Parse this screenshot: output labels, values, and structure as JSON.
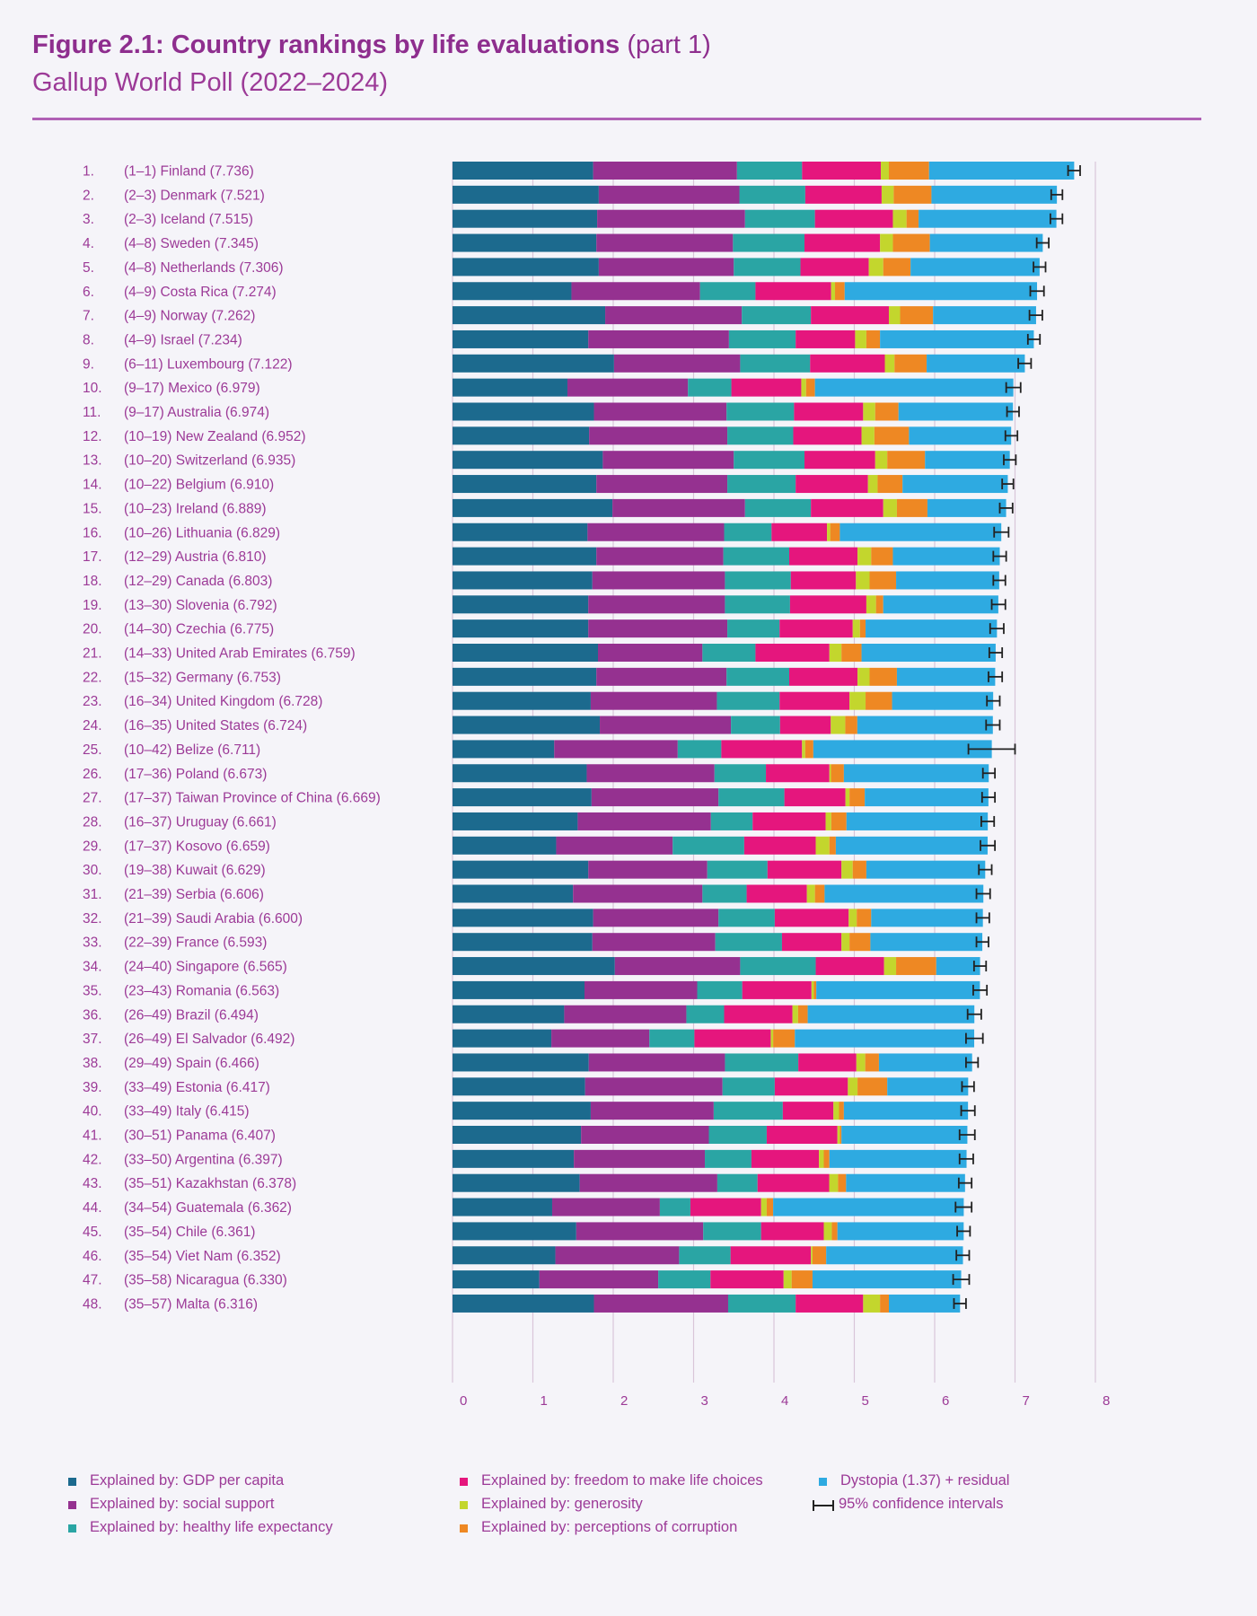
{
  "title": {
    "main": "Figure 2.1: Country rankings by life evaluations",
    "part": "(part 1)",
    "subtitle": "Gallup World Poll (2022–2024)"
  },
  "colors": {
    "gdp": "#1c6a8e",
    "social": "#953190",
    "health": "#2aa5a4",
    "freedom": "#e5167d",
    "generosity": "#c3d62d",
    "corruption": "#ee8823",
    "dystopia": "#2eaae1",
    "text": "#9c3a97",
    "grid": "#d9c5d9"
  },
  "legend": [
    {
      "key": "gdp",
      "label": "Explained by: GDP per capita"
    },
    {
      "key": "social",
      "label": "Explained by: social support"
    },
    {
      "key": "health",
      "label": "Explained by: healthy life expectancy"
    },
    {
      "key": "freedom",
      "label": "Explained by: freedom to make life choices"
    },
    {
      "key": "generosity",
      "label": "Explained by: generosity"
    },
    {
      "key": "corruption",
      "label": "Explained by: perceptions of corruption"
    },
    {
      "key": "dystopia",
      "label": "Dystopia (1.37) + residual"
    },
    {
      "key": "ci",
      "label": "95% confidence intervals"
    }
  ],
  "chart_data": {
    "type": "bar",
    "orientation": "horizontal",
    "stacked": true,
    "xlim": [
      0,
      8
    ],
    "xticks": [
      "0",
      "1",
      "2",
      "3",
      "4",
      "5",
      "6",
      "7",
      "8"
    ],
    "grid": true,
    "legend_position": "bottom",
    "series_keys": [
      "gdp",
      "social",
      "health",
      "freedom",
      "generosity",
      "corruption",
      "dystopia"
    ],
    "rows": [
      {
        "rank": "1.",
        "range": "(1–1)",
        "country": "Finland",
        "score": "7.736",
        "value": 7.736,
        "ci": [
          7.66,
          7.81
        ],
        "parts": [
          1.75,
          1.79,
          0.81,
          0.98,
          0.1,
          0.5,
          1.806
        ]
      },
      {
        "rank": "2.",
        "range": "(2–3)",
        "country": "Denmark",
        "score": "7.521",
        "value": 7.521,
        "ci": [
          7.45,
          7.59
        ],
        "parts": [
          1.82,
          1.75,
          0.82,
          0.95,
          0.15,
          0.47,
          1.561
        ]
      },
      {
        "rank": "3.",
        "range": "(2–3)",
        "country": "Iceland",
        "score": "7.515",
        "value": 7.515,
        "ci": [
          7.44,
          7.59
        ],
        "parts": [
          1.8,
          1.84,
          0.87,
          0.97,
          0.17,
          0.15,
          1.715
        ]
      },
      {
        "rank": "4.",
        "range": "(4–8)",
        "country": "Sweden",
        "score": "7.345",
        "value": 7.345,
        "ci": [
          7.27,
          7.42
        ],
        "parts": [
          1.79,
          1.7,
          0.89,
          0.94,
          0.16,
          0.46,
          1.405
        ]
      },
      {
        "rank": "5.",
        "range": "(4–8)",
        "country": "Netherlands",
        "score": "7.306",
        "value": 7.306,
        "ci": [
          7.23,
          7.38
        ],
        "parts": [
          1.82,
          1.68,
          0.83,
          0.85,
          0.18,
          0.34,
          1.606
        ]
      },
      {
        "rank": "6.",
        "range": "(4–9)",
        "country": "Costa Rica",
        "score": "7.274",
        "value": 7.274,
        "ci": [
          7.19,
          7.36
        ],
        "parts": [
          1.48,
          1.6,
          0.69,
          0.94,
          0.05,
          0.12,
          2.394
        ]
      },
      {
        "rank": "7.",
        "range": "(4–9)",
        "country": "Norway",
        "score": "7.262",
        "value": 7.262,
        "ci": [
          7.18,
          7.34
        ],
        "parts": [
          1.9,
          1.7,
          0.86,
          0.97,
          0.14,
          0.41,
          1.282
        ]
      },
      {
        "rank": "8.",
        "range": "(4–9)",
        "country": "Israel",
        "score": "7.234",
        "value": 7.234,
        "ci": [
          7.16,
          7.31
        ],
        "parts": [
          1.69,
          1.75,
          0.83,
          0.74,
          0.14,
          0.17,
          1.914
        ]
      },
      {
        "rank": "9.",
        "range": "(6–11)",
        "country": "Luxembourg",
        "score": "7.122",
        "value": 7.122,
        "ci": [
          7.04,
          7.2
        ],
        "parts": [
          2.01,
          1.57,
          0.87,
          0.93,
          0.12,
          0.4,
          1.222
        ]
      },
      {
        "rank": "10.",
        "range": "(9–17)",
        "country": "Mexico",
        "score": "6.979",
        "value": 6.979,
        "ci": [
          6.89,
          7.07
        ],
        "parts": [
          1.43,
          1.5,
          0.54,
          0.87,
          0.06,
          0.11,
          2.469
        ]
      },
      {
        "rank": "11.",
        "range": "(9–17)",
        "country": "Australia",
        "score": "6.974",
        "value": 6.974,
        "ci": [
          6.9,
          7.05
        ],
        "parts": [
          1.76,
          1.65,
          0.84,
          0.86,
          0.15,
          0.29,
          1.424
        ]
      },
      {
        "rank": "12.",
        "range": "(10–19)",
        "country": "New Zealand",
        "score": "6.952",
        "value": 6.952,
        "ci": [
          6.88,
          7.03
        ],
        "parts": [
          1.7,
          1.72,
          0.82,
          0.85,
          0.16,
          0.43,
          1.272
        ]
      },
      {
        "rank": "13.",
        "range": "(10–20)",
        "country": "Switzerland",
        "score": "6.935",
        "value": 6.935,
        "ci": [
          6.86,
          7.01
        ],
        "parts": [
          1.87,
          1.63,
          0.88,
          0.88,
          0.15,
          0.47,
          1.055
        ]
      },
      {
        "rank": "14.",
        "range": "(10–22)",
        "country": "Belgium",
        "score": "6.910",
        "value": 6.91,
        "ci": [
          6.84,
          6.98
        ],
        "parts": [
          1.79,
          1.63,
          0.85,
          0.9,
          0.12,
          0.31,
          1.31
        ]
      },
      {
        "rank": "15.",
        "range": "(10–23)",
        "country": "Ireland",
        "score": "6.889",
        "value": 6.889,
        "ci": [
          6.81,
          6.97
        ],
        "parts": [
          1.99,
          1.65,
          0.82,
          0.9,
          0.17,
          0.38,
          0.979
        ]
      },
      {
        "rank": "16.",
        "range": "(10–26)",
        "country": "Lithuania",
        "score": "6.829",
        "value": 6.829,
        "ci": [
          6.74,
          6.92
        ],
        "parts": [
          1.68,
          1.7,
          0.59,
          0.69,
          0.04,
          0.12,
          2.009
        ]
      },
      {
        "rank": "17.",
        "range": "(12–29)",
        "country": "Austria",
        "score": "6.810",
        "value": 6.81,
        "ci": [
          6.73,
          6.89
        ],
        "parts": [
          1.79,
          1.58,
          0.82,
          0.85,
          0.17,
          0.27,
          1.33
        ]
      },
      {
        "rank": "18.",
        "range": "(12–29)",
        "country": "Canada",
        "score": "6.803",
        "value": 6.803,
        "ci": [
          6.73,
          6.88
        ],
        "parts": [
          1.74,
          1.65,
          0.82,
          0.81,
          0.17,
          0.33,
          1.283
        ]
      },
      {
        "rank": "19.",
        "range": "(13–30)",
        "country": "Slovenia",
        "score": "6.792",
        "value": 6.792,
        "ci": [
          6.71,
          6.88
        ],
        "parts": [
          1.69,
          1.7,
          0.81,
          0.95,
          0.12,
          0.09,
          1.432
        ]
      },
      {
        "rank": "20.",
        "range": "(14–30)",
        "country": "Czechia",
        "score": "6.775",
        "value": 6.775,
        "ci": [
          6.69,
          6.86
        ],
        "parts": [
          1.69,
          1.73,
          0.65,
          0.91,
          0.09,
          0.07,
          1.635
        ]
      },
      {
        "rank": "21.",
        "range": "(14–33)",
        "country": "United Arab Emirates",
        "score": "6.759",
        "value": 6.759,
        "ci": [
          6.68,
          6.84
        ],
        "parts": [
          1.81,
          1.3,
          0.66,
          0.92,
          0.15,
          0.25,
          1.669
        ]
      },
      {
        "rank": "22.",
        "range": "(15–32)",
        "country": "Germany",
        "score": "6.753",
        "value": 6.753,
        "ci": [
          6.67,
          6.84
        ],
        "parts": [
          1.79,
          1.62,
          0.78,
          0.85,
          0.15,
          0.34,
          1.223
        ]
      },
      {
        "rank": "23.",
        "range": "(16–34)",
        "country": "United Kingdom",
        "score": "6.728",
        "value": 6.728,
        "ci": [
          6.65,
          6.81
        ],
        "parts": [
          1.72,
          1.57,
          0.78,
          0.87,
          0.2,
          0.33,
          1.258
        ]
      },
      {
        "rank": "24.",
        "range": "(16–35)",
        "country": "United States",
        "score": "6.724",
        "value": 6.724,
        "ci": [
          6.64,
          6.81
        ],
        "parts": [
          1.83,
          1.63,
          0.61,
          0.63,
          0.18,
          0.15,
          1.684
        ]
      },
      {
        "rank": "25.",
        "range": "(10–42)",
        "country": "Belize",
        "score": "6.711",
        "value": 6.711,
        "ci": [
          6.42,
          7.0
        ],
        "parts": [
          1.26,
          1.53,
          0.54,
          1.0,
          0.04,
          0.1,
          2.211
        ]
      },
      {
        "rank": "26.",
        "range": "(17–36)",
        "country": "Poland",
        "score": "6.673",
        "value": 6.673,
        "ci": [
          6.6,
          6.75
        ],
        "parts": [
          1.67,
          1.59,
          0.64,
          0.79,
          0.02,
          0.16,
          1.803
        ]
      },
      {
        "rank": "27.",
        "range": "(17–37)",
        "country": "Taiwan Province of China",
        "score": "6.669",
        "value": 6.669,
        "ci": [
          6.59,
          6.75
        ],
        "parts": [
          1.73,
          1.58,
          0.82,
          0.76,
          0.05,
          0.19,
          1.539
        ]
      },
      {
        "rank": "28.",
        "range": "(16–37)",
        "country": "Uruguay",
        "score": "6.661",
        "value": 6.661,
        "ci": [
          6.58,
          6.74
        ],
        "parts": [
          1.56,
          1.66,
          0.52,
          0.91,
          0.07,
          0.19,
          1.761
        ]
      },
      {
        "rank": "29.",
        "range": "(17–37)",
        "country": "Kosovo",
        "score": "6.659",
        "value": 6.659,
        "ci": [
          6.57,
          6.75
        ],
        "parts": [
          1.29,
          1.45,
          0.89,
          0.89,
          0.17,
          0.08,
          1.889
        ]
      },
      {
        "rank": "30.",
        "range": "(19–38)",
        "country": "Kuwait",
        "score": "6.629",
        "value": 6.629,
        "ci": [
          6.55,
          6.71
        ],
        "parts": [
          1.69,
          1.48,
          0.75,
          0.92,
          0.14,
          0.17,
          1.479
        ]
      },
      {
        "rank": "31.",
        "range": "(21–39)",
        "country": "Serbia",
        "score": "6.606",
        "value": 6.606,
        "ci": [
          6.52,
          6.69
        ],
        "parts": [
          1.5,
          1.61,
          0.55,
          0.75,
          0.1,
          0.12,
          1.976
        ]
      },
      {
        "rank": "32.",
        "range": "(21–39)",
        "country": "Saudi Arabia",
        "score": "6.600",
        "value": 6.6,
        "ci": [
          6.52,
          6.68
        ],
        "parts": [
          1.75,
          1.56,
          0.7,
          0.92,
          0.1,
          0.18,
          1.39
        ]
      },
      {
        "rank": "33.",
        "range": "(22–39)",
        "country": "France",
        "score": "6.593",
        "value": 6.593,
        "ci": [
          6.52,
          6.67
        ],
        "parts": [
          1.74,
          1.53,
          0.83,
          0.74,
          0.1,
          0.26,
          1.393
        ]
      },
      {
        "rank": "34.",
        "range": "(24–40)",
        "country": "Singapore",
        "score": "6.565",
        "value": 6.565,
        "ci": [
          6.49,
          6.64
        ],
        "parts": [
          2.02,
          1.56,
          0.94,
          0.85,
          0.15,
          0.5,
          0.545
        ]
      },
      {
        "rank": "35.",
        "range": "(23–43)",
        "country": "Romania",
        "score": "6.563",
        "value": 6.563,
        "ci": [
          6.48,
          6.65
        ],
        "parts": [
          1.64,
          1.4,
          0.56,
          0.86,
          0.03,
          0.03,
          2.033
        ]
      },
      {
        "rank": "36.",
        "range": "(26–49)",
        "country": "Brazil",
        "score": "6.494",
        "value": 6.494,
        "ci": [
          6.41,
          6.58
        ],
        "parts": [
          1.39,
          1.52,
          0.47,
          0.85,
          0.07,
          0.12,
          2.074
        ]
      },
      {
        "rank": "37.",
        "range": "(26–49)",
        "country": "El Salvador",
        "score": "6.492",
        "value": 6.492,
        "ci": [
          6.39,
          6.6
        ],
        "parts": [
          1.23,
          1.22,
          0.56,
          0.95,
          0.03,
          0.27,
          2.232
        ]
      },
      {
        "rank": "38.",
        "range": "(29–49)",
        "country": "Spain",
        "score": "6.466",
        "value": 6.466,
        "ci": [
          6.39,
          6.54
        ],
        "parts": [
          1.69,
          1.69,
          0.91,
          0.72,
          0.11,
          0.17,
          1.156
        ]
      },
      {
        "rank": "39.",
        "range": "(33–49)",
        "country": "Estonia",
        "score": "6.417",
        "value": 6.417,
        "ci": [
          6.34,
          6.49
        ],
        "parts": [
          1.65,
          1.71,
          0.65,
          0.91,
          0.12,
          0.37,
          1.007
        ]
      },
      {
        "rank": "40.",
        "range": "(33–49)",
        "country": "Italy",
        "score": "6.415",
        "value": 6.415,
        "ci": [
          6.33,
          6.5
        ],
        "parts": [
          1.72,
          1.53,
          0.86,
          0.63,
          0.07,
          0.06,
          1.545
        ]
      },
      {
        "rank": "41.",
        "range": "(30–51)",
        "country": "Panama",
        "score": "6.407",
        "value": 6.407,
        "ci": [
          6.31,
          6.5
        ],
        "parts": [
          1.6,
          1.59,
          0.72,
          0.88,
          0.03,
          0.02,
          1.567
        ]
      },
      {
        "rank": "42.",
        "range": "(33–50)",
        "country": "Argentina",
        "score": "6.397",
        "value": 6.397,
        "ci": [
          6.31,
          6.48
        ],
        "parts": [
          1.51,
          1.63,
          0.58,
          0.84,
          0.06,
          0.07,
          1.707
        ]
      },
      {
        "rank": "43.",
        "range": "(35–51)",
        "country": "Kazakhstan",
        "score": "6.378",
        "value": 6.378,
        "ci": [
          6.3,
          6.46
        ],
        "parts": [
          1.58,
          1.71,
          0.5,
          0.89,
          0.11,
          0.1,
          1.478
        ]
      },
      {
        "rank": "44.",
        "range": "(34–54)",
        "country": "Guatemala",
        "score": "6.362",
        "value": 6.362,
        "ci": [
          6.26,
          6.46
        ],
        "parts": [
          1.24,
          1.34,
          0.38,
          0.88,
          0.07,
          0.08,
          2.372
        ]
      },
      {
        "rank": "45.",
        "range": "(35–54)",
        "country": "Chile",
        "score": "6.361",
        "value": 6.361,
        "ci": [
          6.28,
          6.44
        ],
        "parts": [
          1.54,
          1.58,
          0.72,
          0.78,
          0.1,
          0.07,
          1.571
        ]
      },
      {
        "rank": "46.",
        "range": "(35–54)",
        "country": "Viet Nam",
        "score": "6.352",
        "value": 6.352,
        "ci": [
          6.27,
          6.43
        ],
        "parts": [
          1.28,
          1.54,
          0.64,
          1.0,
          0.02,
          0.17,
          1.702
        ]
      },
      {
        "rank": "47.",
        "range": "(35–58)",
        "country": "Nicaragua",
        "score": "6.330",
        "value": 6.33,
        "ci": [
          6.23,
          6.43
        ],
        "parts": [
          1.08,
          1.48,
          0.65,
          0.91,
          0.1,
          0.26,
          1.85
        ]
      },
      {
        "rank": "48.",
        "range": "(35–57)",
        "country": "Malta",
        "score": "6.316",
        "value": 6.316,
        "ci": [
          6.24,
          6.39
        ],
        "parts": [
          1.76,
          1.67,
          0.84,
          0.84,
          0.21,
          0.11,
          0.886
        ]
      }
    ]
  }
}
